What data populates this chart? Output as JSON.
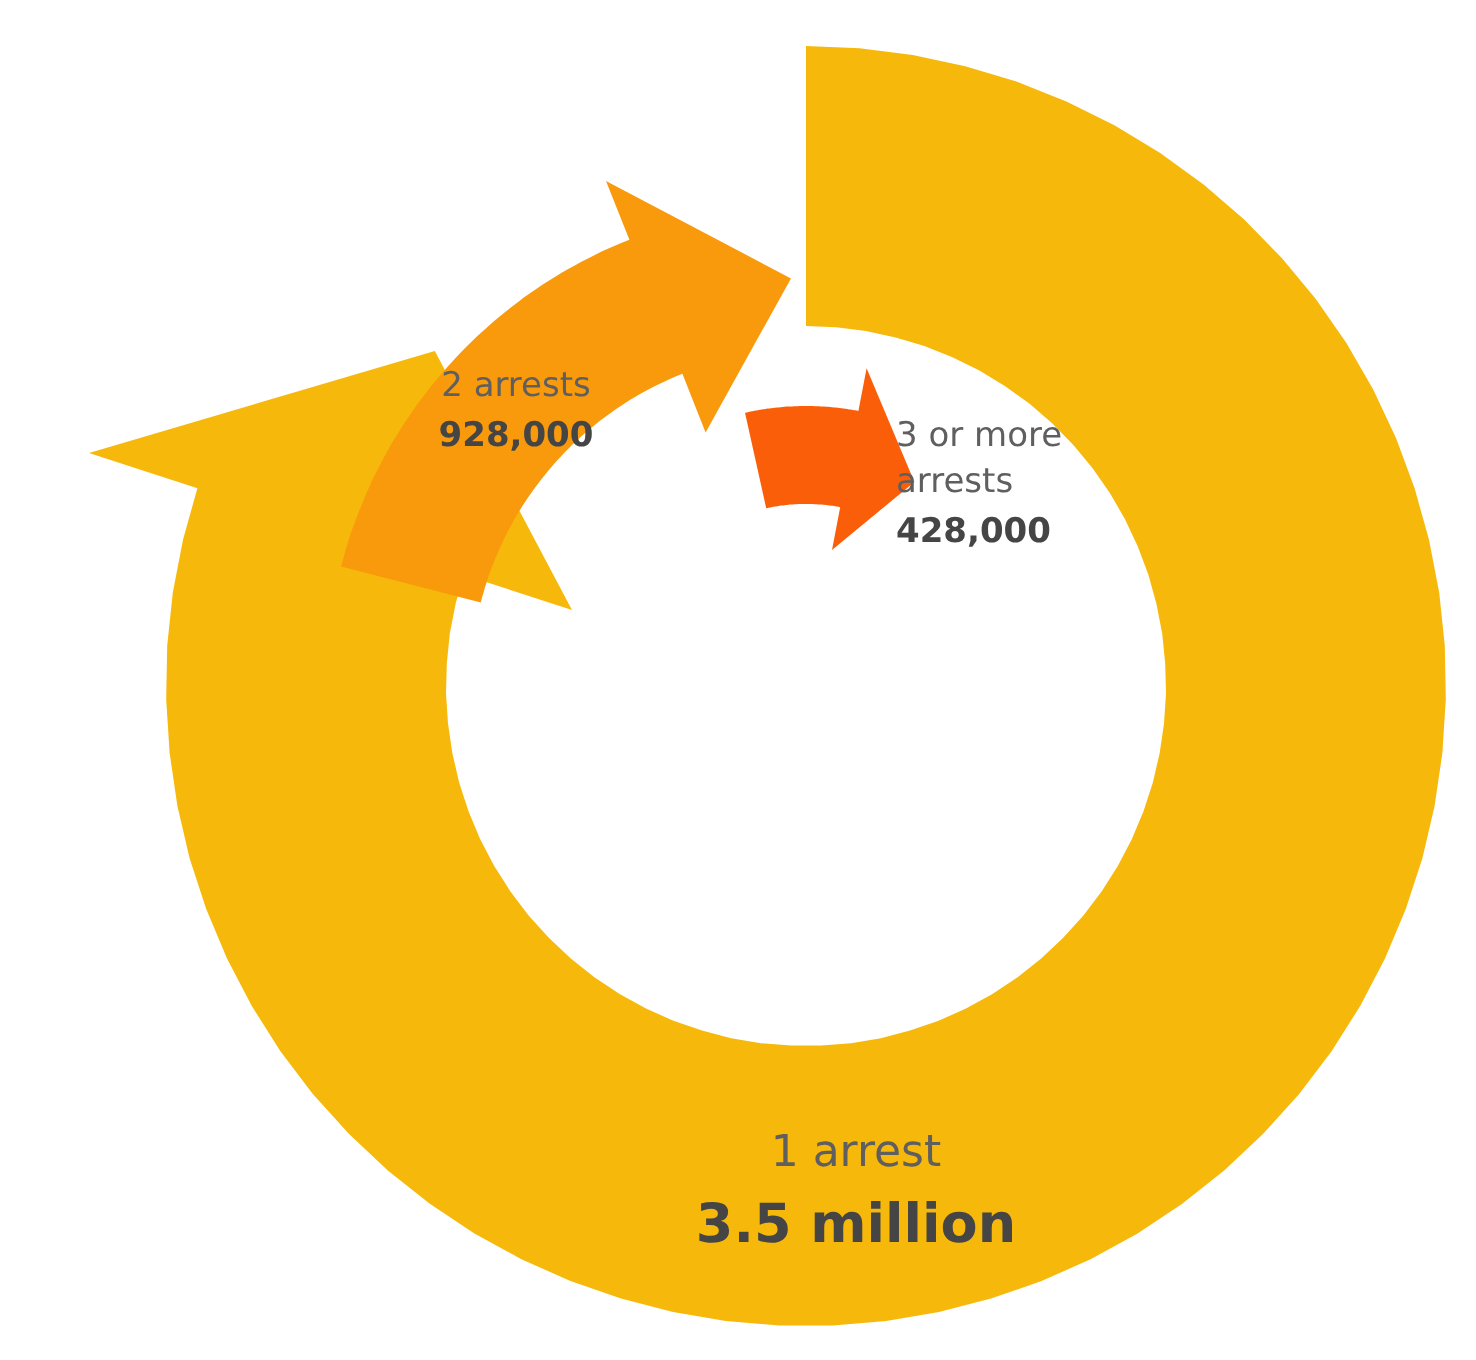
{
  "chart_data": {
    "type": "other",
    "categories": [
      "1 arrest",
      "2 arrests",
      "3 or more arrests"
    ],
    "values": [
      3500000,
      928000,
      428000
    ],
    "value_labels": [
      "3.5 million",
      "928,000",
      "428,000"
    ],
    "colors": [
      "#f6b90b",
      "#f89a0c",
      "#fb5e08"
    ]
  }
}
